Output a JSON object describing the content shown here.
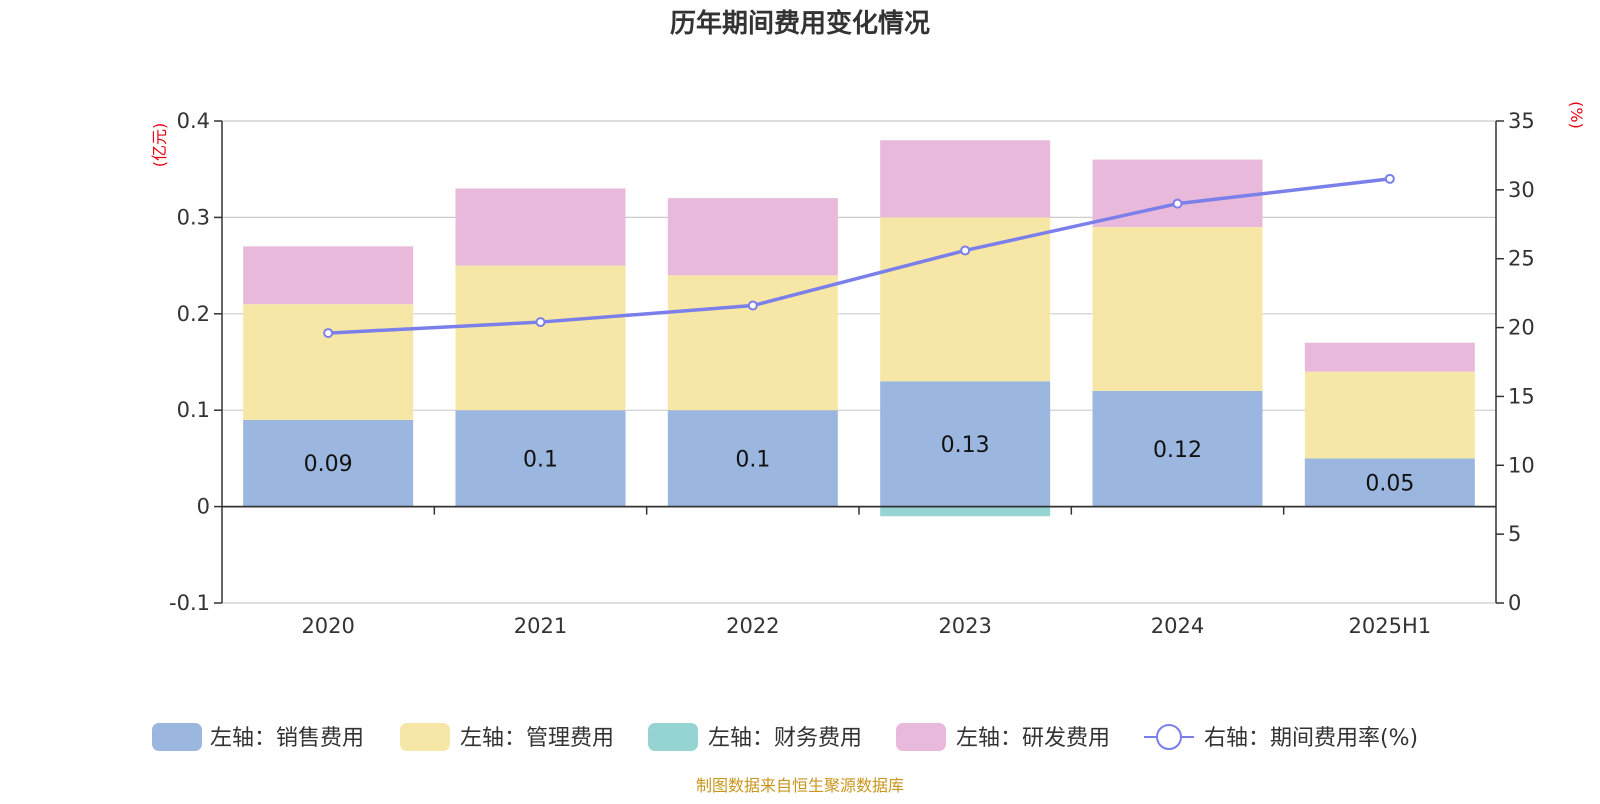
{
  "chart_data": {
    "type": "bar",
    "title": "历年期间费用变化情况",
    "categories": [
      "2020",
      "2021",
      "2022",
      "2023",
      "2024",
      "2025H1"
    ],
    "stacked": true,
    "series": [
      {
        "name": "左轴：销售费用",
        "axis": "left",
        "color": "#9bb7e0",
        "values": [
          0.09,
          0.1,
          0.1,
          0.13,
          0.12,
          0.05
        ],
        "labels": [
          "0.09",
          "0.1",
          "0.1",
          "0.13",
          "0.12",
          "0.05"
        ]
      },
      {
        "name": "左轴：管理费用",
        "axis": "left",
        "color": "#f7e7a6",
        "values": [
          0.12,
          0.15,
          0.14,
          0.17,
          0.17,
          0.09
        ]
      },
      {
        "name": "左轴：财务费用",
        "axis": "left",
        "color": "#96d4d4",
        "values": [
          0,
          0,
          0,
          -0.01,
          0,
          0
        ]
      },
      {
        "name": "左轴：研发费用",
        "axis": "left",
        "color": "#e8b9da",
        "values": [
          0.06,
          0.08,
          0.08,
          0.08,
          0.07,
          0.03
        ]
      }
    ],
    "line": {
      "name": "右轴：期间费用率(%)",
      "axis": "right",
      "color": "#7b7fea",
      "values": [
        19.6,
        20.4,
        21.6,
        25.6,
        29.0,
        30.8
      ]
    },
    "left_axis": {
      "unit": "(亿元)",
      "min": -0.1,
      "max": 0.4,
      "ticks": [
        "0.4",
        "0.3",
        "0.2",
        "0.1",
        "0",
        "-0.1"
      ]
    },
    "right_axis": {
      "unit": "(%)",
      "min": 0,
      "max": 35,
      "ticks": [
        "35",
        "30",
        "25",
        "20",
        "15",
        "10",
        "5",
        "0"
      ]
    },
    "grid": true,
    "legend_position": "bottom",
    "source": "制图数据来自恒生聚源数据库"
  }
}
